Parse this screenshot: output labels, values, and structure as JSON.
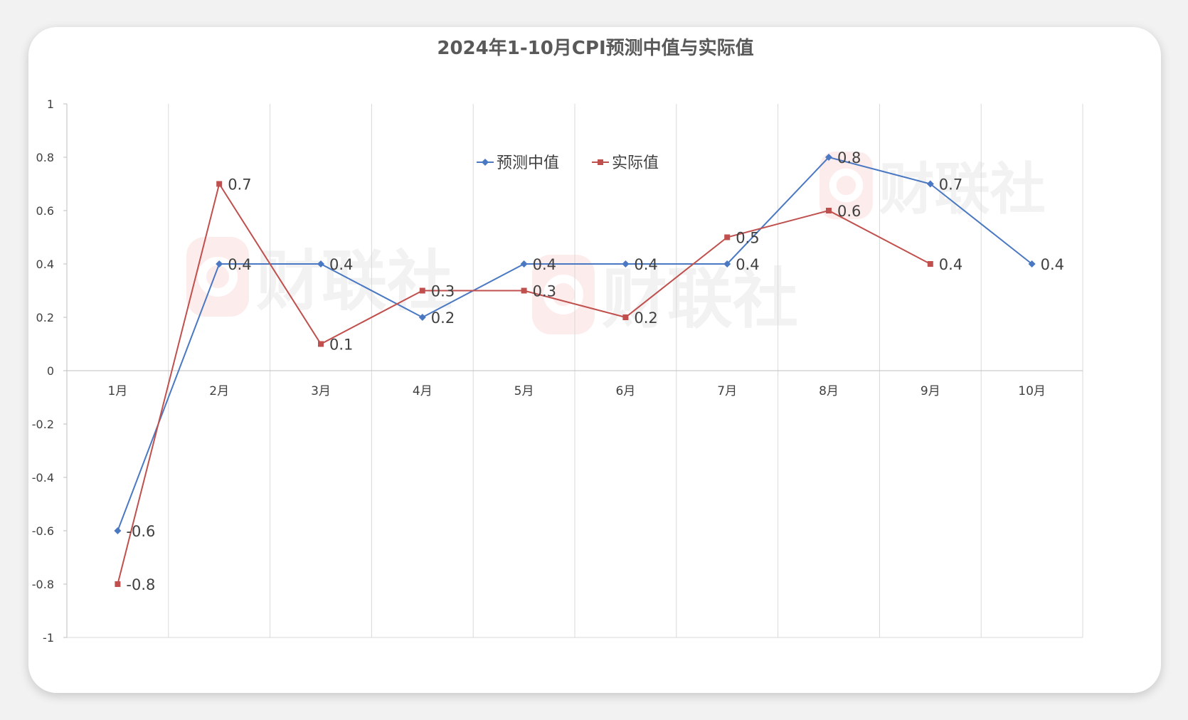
{
  "watermark": {
    "brand": "财联社",
    "logo_color": "#fdecec",
    "text_color": "#f0f0f0"
  },
  "colors": {
    "series_0": "#4a78c2",
    "series_1": "#c0504d",
    "grid": "#d9d9d9",
    "axis": "#bfbfbf"
  },
  "chart_data": {
    "type": "line",
    "title": "2024年1-10月CPI预测中值与实际值",
    "xlabel": "",
    "ylabel": "",
    "categories": [
      "1月",
      "2月",
      "3月",
      "4月",
      "5月",
      "6月",
      "7月",
      "8月",
      "9月",
      "10月"
    ],
    "ylim": [
      -1,
      1
    ],
    "yticks": [
      "1",
      "0.8",
      "0.6",
      "0.4",
      "0.2",
      "0",
      "-0.2",
      "-0.4",
      "-0.6",
      "-0.8",
      "-1"
    ],
    "grid": "vertical",
    "legend_position": "top-center",
    "series": [
      {
        "name": "预测中值",
        "marker": "diamond",
        "values": [
          -0.6,
          0.4,
          0.4,
          0.2,
          0.4,
          0.4,
          0.4,
          0.8,
          0.7,
          0.4
        ],
        "labels": [
          "-0.6",
          "0.4",
          "0.4",
          "0.2",
          "0.4",
          "0.4",
          "0.4",
          "0.8",
          "0.7",
          "0.4"
        ]
      },
      {
        "name": "实际值",
        "marker": "square",
        "values": [
          -0.8,
          0.7,
          0.1,
          0.3,
          0.3,
          0.2,
          0.5,
          0.6,
          0.4,
          null
        ],
        "labels": [
          "-0.8",
          "0.7",
          "0.1",
          "0.3",
          "0.3",
          "0.2",
          "0.5",
          "0.6",
          "0.4",
          null
        ]
      }
    ]
  }
}
